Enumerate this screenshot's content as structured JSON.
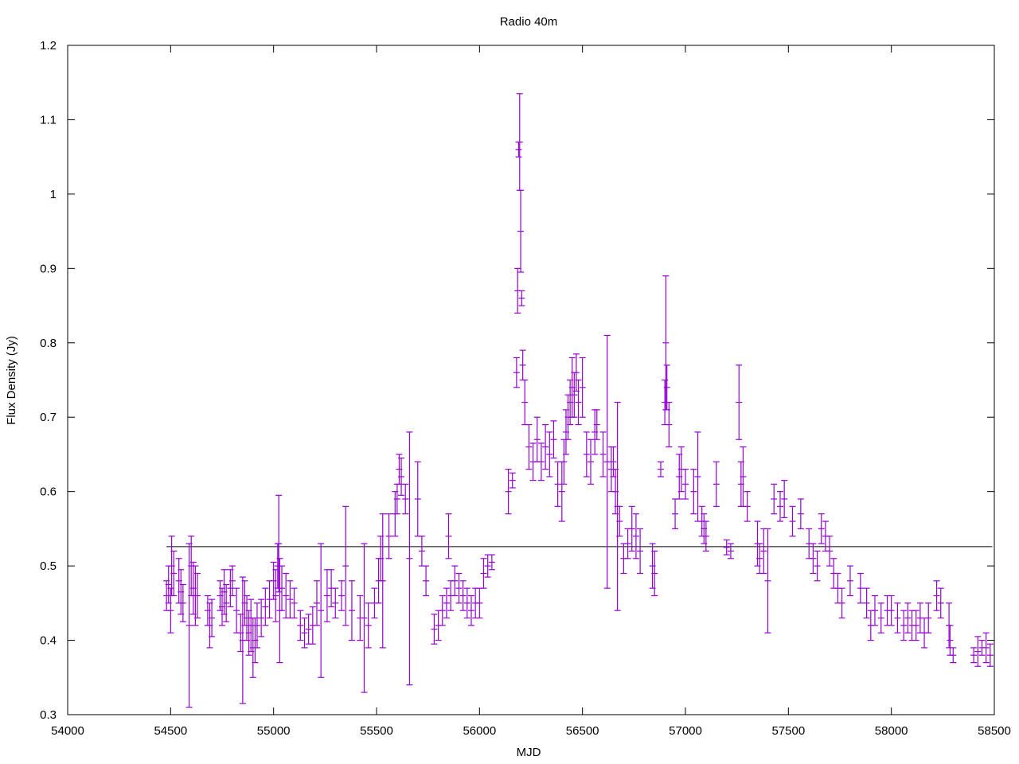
{
  "chart_data": {
    "type": "scatter",
    "title": "Radio 40m",
    "xlabel": "MJD",
    "ylabel": "Flux Density (Jy)",
    "xlim": [
      54000,
      58500
    ],
    "ylim": [
      0.3,
      1.2
    ],
    "xticks": [
      54000,
      54500,
      55000,
      55500,
      56000,
      56500,
      57000,
      57500,
      58000,
      58500
    ],
    "yticks": [
      0.3,
      0.4,
      0.5,
      0.6,
      0.7,
      0.8,
      0.9,
      1.0,
      1.1,
      1.2
    ],
    "xtick_labels": [
      "54000",
      "54500",
      "55000",
      "55500",
      "56000",
      "56500",
      "57000",
      "57500",
      "58000",
      "58500"
    ],
    "ytick_labels": [
      "0.3",
      "0.4",
      "0.5",
      "0.6",
      "0.7",
      "0.8",
      "0.9",
      "1",
      "1.1",
      "1.2"
    ],
    "grid": false,
    "series_color": "#9400d3",
    "mean_line": {
      "y": 0.526,
      "x": [
        54480,
        58490
      ],
      "color": "#000000"
    },
    "points": [
      [
        54480,
        0.46,
        0.02
      ],
      [
        54490,
        0.475,
        0.025
      ],
      [
        54500,
        0.44,
        0.03
      ],
      [
        54505,
        0.5,
        0.04
      ],
      [
        54515,
        0.49,
        0.03
      ],
      [
        54540,
        0.48,
        0.03
      ],
      [
        54550,
        0.465,
        0.03
      ],
      [
        54560,
        0.45,
        0.025
      ],
      [
        54590,
        0.42,
        0.11
      ],
      [
        54600,
        0.5,
        0.04
      ],
      [
        54610,
        0.47,
        0.035
      ],
      [
        54620,
        0.46,
        0.04
      ],
      [
        54630,
        0.46,
        0.03
      ],
      [
        54680,
        0.44,
        0.02
      ],
      [
        54690,
        0.42,
        0.03
      ],
      [
        54700,
        0.43,
        0.025
      ],
      [
        54740,
        0.46,
        0.02
      ],
      [
        54750,
        0.445,
        0.025
      ],
      [
        54760,
        0.465,
        0.03
      ],
      [
        54770,
        0.45,
        0.025
      ],
      [
        54790,
        0.47,
        0.025
      ],
      [
        54800,
        0.48,
        0.02
      ],
      [
        54820,
        0.44,
        0.03
      ],
      [
        54840,
        0.41,
        0.025
      ],
      [
        54850,
        0.4,
        0.085
      ],
      [
        54860,
        0.45,
        0.03
      ],
      [
        54870,
        0.43,
        0.03
      ],
      [
        54880,
        0.41,
        0.03
      ],
      [
        54890,
        0.42,
        0.035
      ],
      [
        54900,
        0.39,
        0.04
      ],
      [
        54910,
        0.4,
        0.03
      ],
      [
        54920,
        0.42,
        0.03
      ],
      [
        54940,
        0.43,
        0.025
      ],
      [
        54960,
        0.445,
        0.025
      ],
      [
        54980,
        0.455,
        0.025
      ],
      [
        55000,
        0.48,
        0.025
      ],
      [
        55010,
        0.46,
        0.035
      ],
      [
        55020,
        0.5,
        0.03
      ],
      [
        55025,
        0.53,
        0.065
      ],
      [
        55030,
        0.44,
        0.07
      ],
      [
        55040,
        0.47,
        0.03
      ],
      [
        55060,
        0.46,
        0.03
      ],
      [
        55080,
        0.455,
        0.025
      ],
      [
        55100,
        0.45,
        0.02
      ],
      [
        55130,
        0.42,
        0.02
      ],
      [
        55150,
        0.41,
        0.02
      ],
      [
        55170,
        0.415,
        0.02
      ],
      [
        55190,
        0.42,
        0.025
      ],
      [
        55210,
        0.45,
        0.03
      ],
      [
        55230,
        0.44,
        0.09
      ],
      [
        55260,
        0.46,
        0.035
      ],
      [
        55280,
        0.47,
        0.025
      ],
      [
        55300,
        0.45,
        0.02
      ],
      [
        55330,
        0.46,
        0.02
      ],
      [
        55350,
        0.5,
        0.08
      ],
      [
        55380,
        0.44,
        0.04
      ],
      [
        55420,
        0.43,
        0.03
      ],
      [
        55440,
        0.43,
        0.1
      ],
      [
        55460,
        0.42,
        0.03
      ],
      [
        55490,
        0.45,
        0.02
      ],
      [
        55510,
        0.48,
        0.03
      ],
      [
        55520,
        0.51,
        0.03
      ],
      [
        55530,
        0.48,
        0.09
      ],
      [
        55560,
        0.54,
        0.03
      ],
      [
        55590,
        0.57,
        0.03
      ],
      [
        55600,
        0.59,
        0.02
      ],
      [
        55610,
        0.63,
        0.02
      ],
      [
        55620,
        0.62,
        0.025
      ],
      [
        55640,
        0.59,
        0.02
      ],
      [
        55660,
        0.51,
        0.17
      ],
      [
        55700,
        0.59,
        0.05
      ],
      [
        55720,
        0.52,
        0.02
      ],
      [
        55740,
        0.48,
        0.02
      ],
      [
        55780,
        0.415,
        0.02
      ],
      [
        55800,
        0.42,
        0.02
      ],
      [
        55820,
        0.44,
        0.02
      ],
      [
        55840,
        0.45,
        0.02
      ],
      [
        55850,
        0.54,
        0.03
      ],
      [
        55860,
        0.46,
        0.02
      ],
      [
        55880,
        0.48,
        0.02
      ],
      [
        55900,
        0.47,
        0.02
      ],
      [
        55920,
        0.46,
        0.02
      ],
      [
        55940,
        0.45,
        0.02
      ],
      [
        55960,
        0.44,
        0.02
      ],
      [
        55980,
        0.45,
        0.02
      ],
      [
        56000,
        0.45,
        0.02
      ],
      [
        56020,
        0.49,
        0.02
      ],
      [
        56040,
        0.5,
        0.015
      ],
      [
        56060,
        0.505,
        0.01
      ],
      [
        56140,
        0.6,
        0.03
      ],
      [
        56160,
        0.615,
        0.01
      ],
      [
        56180,
        0.76,
        0.02
      ],
      [
        56185,
        0.87,
        0.03
      ],
      [
        56190,
        1.06,
        0.01
      ],
      [
        56195,
        1.07,
        0.065
      ],
      [
        56200,
        0.95,
        0.055
      ],
      [
        56205,
        0.86,
        0.01
      ],
      [
        56210,
        0.77,
        0.02
      ],
      [
        56220,
        0.72,
        0.03
      ],
      [
        56240,
        0.66,
        0.03
      ],
      [
        56260,
        0.64,
        0.025
      ],
      [
        56280,
        0.67,
        0.03
      ],
      [
        56300,
        0.64,
        0.025
      ],
      [
        56320,
        0.66,
        0.03
      ],
      [
        56340,
        0.65,
        0.03
      ],
      [
        56360,
        0.67,
        0.025
      ],
      [
        56380,
        0.61,
        0.03
      ],
      [
        56400,
        0.6,
        0.04
      ],
      [
        56410,
        0.64,
        0.03
      ],
      [
        56420,
        0.68,
        0.03
      ],
      [
        56430,
        0.7,
        0.03
      ],
      [
        56440,
        0.72,
        0.03
      ],
      [
        56450,
        0.74,
        0.04
      ],
      [
        56460,
        0.73,
        0.03
      ],
      [
        56470,
        0.76,
        0.025
      ],
      [
        56480,
        0.72,
        0.03
      ],
      [
        56500,
        0.74,
        0.04
      ],
      [
        56520,
        0.65,
        0.03
      ],
      [
        56540,
        0.64,
        0.03
      ],
      [
        56560,
        0.68,
        0.03
      ],
      [
        56570,
        0.69,
        0.02
      ],
      [
        56600,
        0.65,
        0.03
      ],
      [
        56620,
        0.64,
        0.17
      ],
      [
        56640,
        0.63,
        0.03
      ],
      [
        56650,
        0.64,
        0.02
      ],
      [
        56660,
        0.6,
        0.03
      ],
      [
        56670,
        0.58,
        0.14
      ],
      [
        56680,
        0.56,
        0.02
      ],
      [
        56700,
        0.51,
        0.02
      ],
      [
        56720,
        0.53,
        0.02
      ],
      [
        56740,
        0.55,
        0.03
      ],
      [
        56760,
        0.54,
        0.03
      ],
      [
        56780,
        0.52,
        0.03
      ],
      [
        56840,
        0.5,
        0.03
      ],
      [
        56850,
        0.49,
        0.03
      ],
      [
        56880,
        0.63,
        0.01
      ],
      [
        56900,
        0.72,
        0.03
      ],
      [
        56905,
        0.8,
        0.09
      ],
      [
        56910,
        0.74,
        0.03
      ],
      [
        56920,
        0.69,
        0.03
      ],
      [
        56950,
        0.57,
        0.02
      ],
      [
        56970,
        0.62,
        0.03
      ],
      [
        56980,
        0.63,
        0.03
      ],
      [
        57000,
        0.61,
        0.02
      ],
      [
        57040,
        0.6,
        0.03
      ],
      [
        57060,
        0.62,
        0.06
      ],
      [
        57080,
        0.56,
        0.02
      ],
      [
        57090,
        0.55,
        0.02
      ],
      [
        57100,
        0.54,
        0.02
      ],
      [
        57150,
        0.61,
        0.03
      ],
      [
        57200,
        0.525,
        0.01
      ],
      [
        57220,
        0.52,
        0.01
      ],
      [
        57260,
        0.72,
        0.05
      ],
      [
        57270,
        0.61,
        0.03
      ],
      [
        57280,
        0.62,
        0.04
      ],
      [
        57300,
        0.58,
        0.02
      ],
      [
        57350,
        0.53,
        0.03
      ],
      [
        57360,
        0.51,
        0.02
      ],
      [
        57380,
        0.52,
        0.03
      ],
      [
        57400,
        0.48,
        0.07
      ],
      [
        57430,
        0.59,
        0.02
      ],
      [
        57460,
        0.58,
        0.02
      ],
      [
        57480,
        0.59,
        0.025
      ],
      [
        57520,
        0.56,
        0.02
      ],
      [
        57560,
        0.57,
        0.02
      ],
      [
        57600,
        0.53,
        0.02
      ],
      [
        57620,
        0.51,
        0.02
      ],
      [
        57640,
        0.5,
        0.02
      ],
      [
        57660,
        0.55,
        0.02
      ],
      [
        57680,
        0.54,
        0.02
      ],
      [
        57700,
        0.52,
        0.02
      ],
      [
        57720,
        0.49,
        0.02
      ],
      [
        57740,
        0.47,
        0.02
      ],
      [
        57760,
        0.45,
        0.02
      ],
      [
        57800,
        0.48,
        0.02
      ],
      [
        57850,
        0.47,
        0.02
      ],
      [
        57880,
        0.45,
        0.02
      ],
      [
        57900,
        0.42,
        0.02
      ],
      [
        57920,
        0.44,
        0.02
      ],
      [
        57950,
        0.43,
        0.02
      ],
      [
        57980,
        0.44,
        0.02
      ],
      [
        58000,
        0.44,
        0.02
      ],
      [
        58030,
        0.43,
        0.02
      ],
      [
        58060,
        0.42,
        0.02
      ],
      [
        58080,
        0.43,
        0.02
      ],
      [
        58100,
        0.42,
        0.02
      ],
      [
        58120,
        0.42,
        0.02
      ],
      [
        58140,
        0.43,
        0.02
      ],
      [
        58160,
        0.41,
        0.02
      ],
      [
        58180,
        0.43,
        0.02
      ],
      [
        58220,
        0.46,
        0.02
      ],
      [
        58240,
        0.45,
        0.02
      ],
      [
        58280,
        0.42,
        0.03
      ],
      [
        58285,
        0.4,
        0.02
      ],
      [
        58300,
        0.38,
        0.01
      ],
      [
        58400,
        0.38,
        0.01
      ],
      [
        58420,
        0.385,
        0.02
      ],
      [
        58440,
        0.39,
        0.01
      ],
      [
        58460,
        0.39,
        0.02
      ],
      [
        58480,
        0.38,
        0.015
      ]
    ]
  }
}
